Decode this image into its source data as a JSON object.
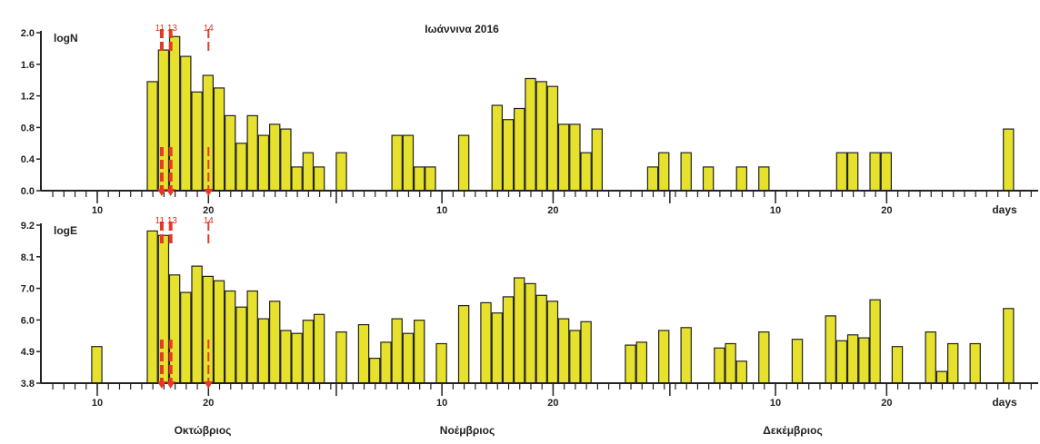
{
  "title": "Ιωάννινα 2016",
  "month_labels": [
    "Οκτώβριος",
    "Νοέμβριος",
    "Δεκέμβριος"
  ],
  "colors": {
    "bar_fill": "#e6e12c",
    "bar_stroke": "#222222",
    "axis": "#222222",
    "marker": "#e53a22"
  },
  "markers": [
    {
      "day": 13,
      "label": "11 13"
    },
    {
      "day": 14,
      "label": "14"
    }
  ],
  "chart_data": [
    {
      "type": "bar",
      "panel": "top",
      "ylabel": "logN",
      "x_unit_label": "days",
      "ylim": [
        0.0,
        2.0
      ],
      "yticks": [
        "0.0",
        "0.4",
        "0.8",
        "1.2",
        "1.6",
        "2.0"
      ],
      "x_tick_labels": [
        {
          "day": 10,
          "label": "10"
        },
        {
          "day": 20,
          "label": "20"
        },
        {
          "day": 41,
          "label": "10"
        },
        {
          "day": 51,
          "label": "20"
        },
        {
          "day": 71,
          "label": "10"
        },
        {
          "day": 81,
          "label": "20"
        }
      ],
      "bars": [
        [
          15,
          1.38
        ],
        [
          16,
          1.78
        ],
        [
          17,
          1.95
        ],
        [
          18,
          1.7
        ],
        [
          19,
          1.25
        ],
        [
          20,
          1.46
        ],
        [
          21,
          1.3
        ],
        [
          22,
          0.95
        ],
        [
          23,
          0.6
        ],
        [
          24,
          0.95
        ],
        [
          25,
          0.7
        ],
        [
          26,
          0.84
        ],
        [
          27,
          0.78
        ],
        [
          28,
          0.3
        ],
        [
          29,
          0.48
        ],
        [
          30,
          0.3
        ],
        [
          32,
          0.48
        ],
        [
          37,
          0.7
        ],
        [
          38,
          0.7
        ],
        [
          39,
          0.3
        ],
        [
          40,
          0.3
        ],
        [
          43,
          0.7
        ],
        [
          46,
          1.08
        ],
        [
          47,
          0.9
        ],
        [
          48,
          1.04
        ],
        [
          49,
          1.42
        ],
        [
          50,
          1.38
        ],
        [
          51,
          1.32
        ],
        [
          52,
          0.84
        ],
        [
          53,
          0.84
        ],
        [
          54,
          0.48
        ],
        [
          55,
          0.78
        ],
        [
          60,
          0.3
        ],
        [
          61,
          0.48
        ],
        [
          63,
          0.48
        ],
        [
          65,
          0.3
        ],
        [
          68,
          0.3
        ],
        [
          70,
          0.3
        ],
        [
          77,
          0.48
        ],
        [
          78,
          0.48
        ],
        [
          80,
          0.48
        ],
        [
          81,
          0.48
        ],
        [
          92,
          0.78
        ]
      ]
    },
    {
      "type": "bar",
      "panel": "bottom",
      "ylabel": "logE",
      "x_unit_label": "days",
      "ylim": [
        3.8,
        9.2
      ],
      "yticks": [
        "3.8",
        "4.9",
        "6.0",
        "7.0",
        "8.1",
        "9.2"
      ],
      "x_tick_labels": [
        {
          "day": 10,
          "label": "10"
        },
        {
          "day": 20,
          "label": "20"
        },
        {
          "day": 41,
          "label": "10"
        },
        {
          "day": 51,
          "label": "20"
        },
        {
          "day": 71,
          "label": "10"
        },
        {
          "day": 81,
          "label": "20"
        }
      ],
      "bars": [
        [
          10,
          5.05
        ],
        [
          15,
          9.0
        ],
        [
          16,
          8.85
        ],
        [
          17,
          7.5
        ],
        [
          18,
          6.9
        ],
        [
          19,
          7.8
        ],
        [
          20,
          7.45
        ],
        [
          21,
          7.3
        ],
        [
          22,
          6.95
        ],
        [
          23,
          6.4
        ],
        [
          24,
          6.95
        ],
        [
          25,
          6.0
        ],
        [
          26,
          6.6
        ],
        [
          27,
          5.6
        ],
        [
          28,
          5.5
        ],
        [
          29,
          5.95
        ],
        [
          30,
          6.15
        ],
        [
          32,
          5.55
        ],
        [
          34,
          5.8
        ],
        [
          35,
          4.65
        ],
        [
          36,
          5.2
        ],
        [
          37,
          6.0
        ],
        [
          38,
          5.5
        ],
        [
          39,
          5.95
        ],
        [
          41,
          5.15
        ],
        [
          43,
          6.45
        ],
        [
          45,
          6.55
        ],
        [
          46,
          6.2
        ],
        [
          47,
          6.75
        ],
        [
          48,
          7.4
        ],
        [
          49,
          7.2
        ],
        [
          50,
          6.8
        ],
        [
          51,
          6.6
        ],
        [
          52,
          6.0
        ],
        [
          53,
          5.6
        ],
        [
          54,
          5.9
        ],
        [
          58,
          5.1
        ],
        [
          59,
          5.2
        ],
        [
          61,
          5.6
        ],
        [
          63,
          5.7
        ],
        [
          66,
          5.0
        ],
        [
          67,
          5.15
        ],
        [
          68,
          4.55
        ],
        [
          70,
          5.55
        ],
        [
          73,
          5.3
        ],
        [
          76,
          6.1
        ],
        [
          77,
          5.25
        ],
        [
          78,
          5.45
        ],
        [
          79,
          5.35
        ],
        [
          80,
          6.65
        ],
        [
          82,
          5.05
        ],
        [
          85,
          5.55
        ],
        [
          86,
          4.2
        ],
        [
          87,
          5.15
        ],
        [
          89,
          5.15
        ],
        [
          92,
          6.35
        ]
      ]
    }
  ]
}
